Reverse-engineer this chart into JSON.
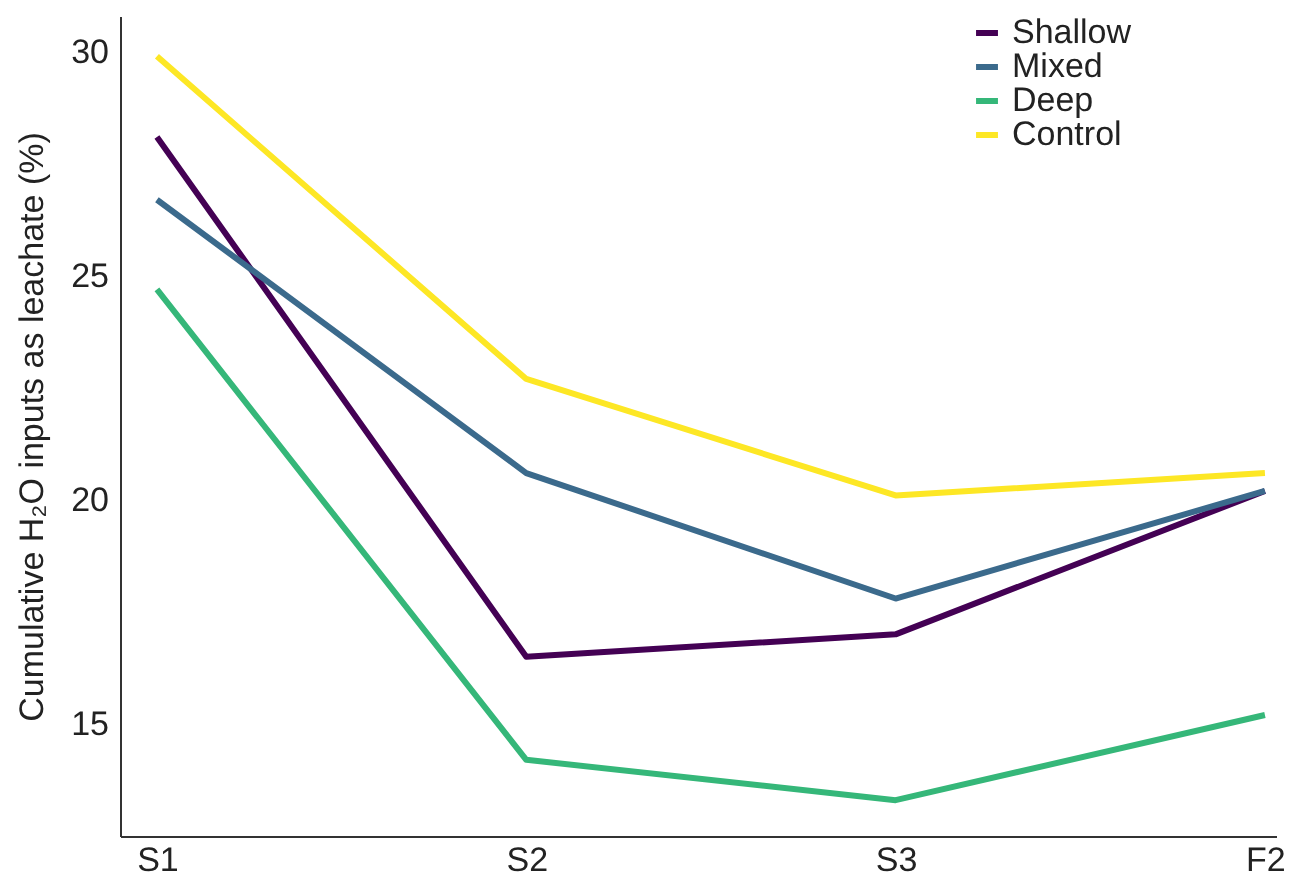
{
  "chart_data": {
    "type": "line",
    "ylabel": "Cumulative H₂O inputs as leachate (%)",
    "categories": [
      "S1",
      "S2",
      "S3",
      "F2"
    ],
    "series": [
      {
        "name": "Shallow",
        "color": "#440154",
        "values": [
          28.1,
          16.5,
          17.0,
          20.2
        ]
      },
      {
        "name": "Mixed",
        "color": "#3b6a8c",
        "values": [
          26.7,
          20.6,
          17.8,
          20.2
        ]
      },
      {
        "name": "Deep",
        "color": "#35b779",
        "values": [
          24.7,
          14.2,
          13.3,
          15.2
        ]
      },
      {
        "name": "Control",
        "color": "#fde725",
        "values": [
          29.9,
          22.7,
          20.1,
          20.6
        ]
      }
    ],
    "ylim": [
      12.5,
      30.8
    ],
    "yticks": [
      15,
      20,
      25,
      30
    ],
    "grid": false,
    "legend": "top right",
    "marker": "none",
    "line_style": "solid"
  }
}
